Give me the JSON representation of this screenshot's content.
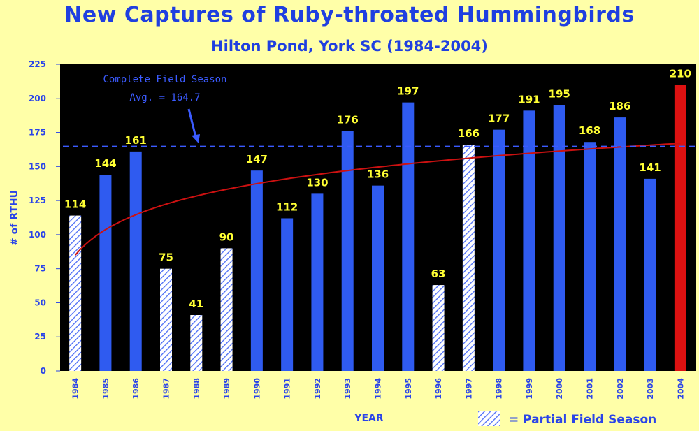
{
  "header": {
    "title": "New Captures of Ruby-throated Hummingbirds",
    "subtitle": "Hilton Pond, York SC (1984-2004)"
  },
  "chart_data": {
    "type": "bar",
    "title": "New Captures of Ruby-throated Hummingbirds",
    "subtitle": "Hilton Pond, York SC (1984-2004)",
    "xlabel": "YEAR",
    "ylabel": "# of RTHU",
    "ylim": [
      0,
      225
    ],
    "yticks": [
      0,
      25,
      50,
      75,
      100,
      125,
      150,
      175,
      200,
      225
    ],
    "categories": [
      "1984",
      "1985",
      "1986",
      "1987",
      "1988",
      "1989",
      "1990",
      "1991",
      "1992",
      "1993",
      "1994",
      "1995",
      "1996",
      "1997",
      "1998",
      "1999",
      "2000",
      "2001",
      "2002",
      "2003",
      "2004"
    ],
    "values": [
      114,
      144,
      161,
      75,
      41,
      90,
      147,
      112,
      130,
      176,
      136,
      197,
      63,
      166,
      177,
      191,
      195,
      168,
      186,
      141,
      210
    ],
    "partial_season": [
      "1984",
      "1987",
      "1988",
      "1989",
      "1996",
      "1997"
    ],
    "highlight": "2004",
    "average_line": {
      "value": 164.7,
      "label_line1": "Complete Field Season",
      "label_line2": "Avg. = 164.7"
    },
    "trend_line": {
      "type": "logarithmic",
      "start_value": 85,
      "end_value": 167
    },
    "legend": {
      "label": "= Partial Field Season",
      "placement": "bottom-right"
    },
    "grid": false,
    "colors": {
      "background": "#FFFFA8",
      "plot_background": "#000000",
      "bar": "#2F5BF0",
      "highlight_bar": "#DD1111",
      "partial_hatch": "#4A6CF5",
      "trend": "#CC1111",
      "value_label": "#FFFF33",
      "average_line": "#3B5BFF"
    }
  }
}
